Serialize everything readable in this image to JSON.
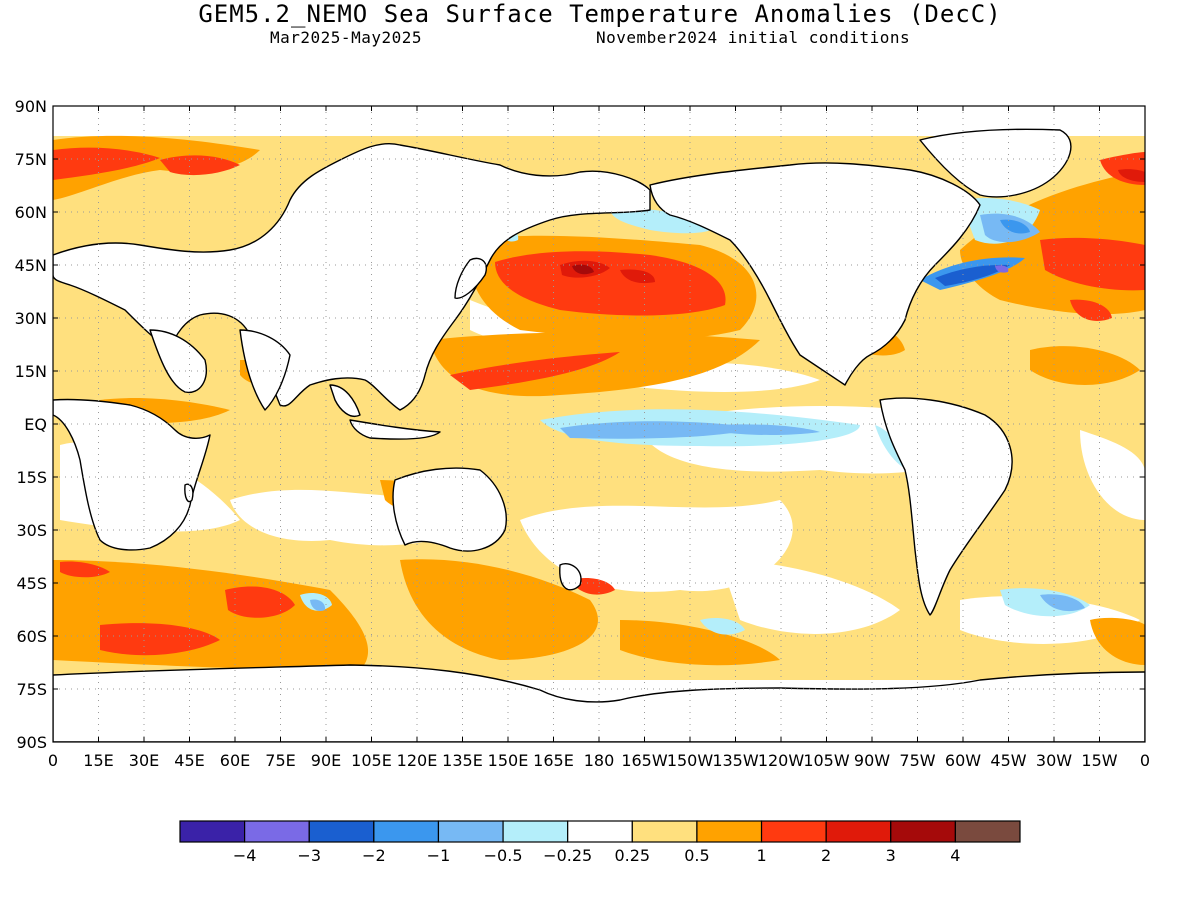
{
  "title": "GEM5.2_NEMO Sea Surface Temperature Anomalies (DecC)",
  "subtitle_left": "Mar2025-May2025",
  "subtitle_right": "November2024 initial conditions",
  "lat_labels": [
    "90N",
    "75N",
    "60N",
    "45N",
    "30N",
    "15N",
    "EQ",
    "15S",
    "30S",
    "45S",
    "60S",
    "75S",
    "90S"
  ],
  "lon_labels": [
    "0",
    "15E",
    "30E",
    "45E",
    "60E",
    "75E",
    "90E",
    "105E",
    "120E",
    "135E",
    "150E",
    "165E",
    "180",
    "165W",
    "150W",
    "135W",
    "120W",
    "105W",
    "90W",
    "75W",
    "60W",
    "45W",
    "30W",
    "15W",
    "0"
  ],
  "colorbar": {
    "colors": [
      "#3a22a8",
      "#7a6ae6",
      "#1a5fd0",
      "#3b97ee",
      "#77b9f4",
      "#b4eefa",
      "#ffffff",
      "#ffe07e",
      "#ffa200",
      "#ff3a10",
      "#e01a0a",
      "#a50a0a",
      "#7a4a3e"
    ],
    "tick_labels": [
      "-4",
      "-3",
      "-2",
      "-1",
      "-0.5",
      "-0.25",
      "0.25",
      "0.5",
      "1",
      "2",
      "3",
      "4"
    ]
  },
  "colors": {
    "land": "#ffffff",
    "coast": "#000000",
    "grid": "#9a9a9a"
  }
}
